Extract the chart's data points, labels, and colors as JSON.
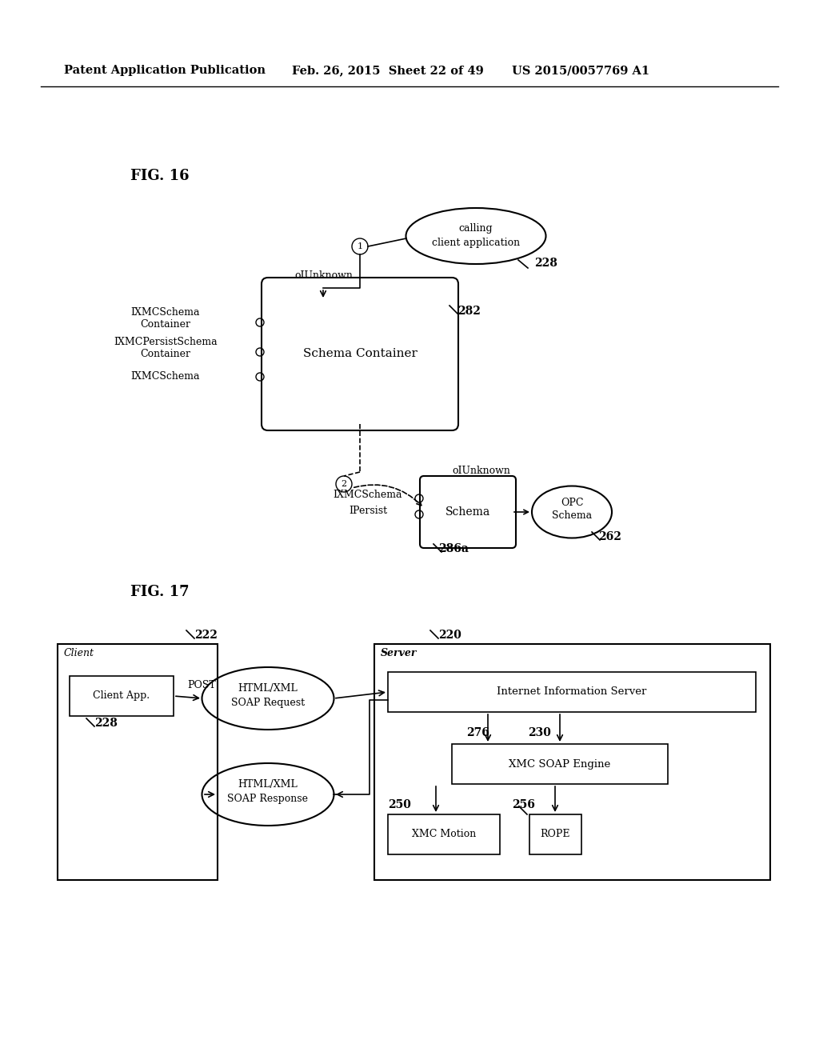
{
  "bg_color": "#ffffff",
  "header_left": "Patent Application Publication",
  "header_mid": "Feb. 26, 2015  Sheet 22 of 49",
  "header_right": "US 2015/0057769 A1",
  "fig16_label": "FIG. 16",
  "fig17_label": "FIG. 17",
  "fig_width": 10.24,
  "fig_height": 13.2
}
